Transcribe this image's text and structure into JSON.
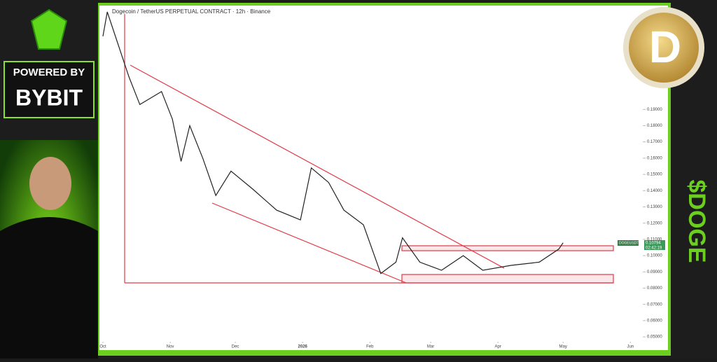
{
  "chart_data": {
    "type": "line",
    "title": "Dogecoin / TetherUS PERPETUAL CONTRACT · 12h · Binance",
    "x": [
      0,
      2,
      12,
      17,
      27,
      32,
      36,
      40,
      46,
      52,
      59,
      69,
      80,
      91,
      96,
      104,
      111,
      120,
      128,
      135,
      138,
      146,
      156,
      166,
      175,
      188,
      201,
      210,
      212
    ],
    "series": [
      {
        "name": "DOGEUSDT.P",
        "color": "#222222",
        "values": [
          0.235,
          0.25,
          0.21,
          0.193,
          0.201,
          0.184,
          0.158,
          0.18,
          0.16,
          0.137,
          0.152,
          0.141,
          0.128,
          0.122,
          0.154,
          0.145,
          0.128,
          0.119,
          0.089,
          0.096,
          0.111,
          0.096,
          0.091,
          0.1,
          0.091,
          0.094,
          0.096,
          0.104,
          0.10794
        ]
      }
    ],
    "xlim": [
      -1,
      250
    ],
    "xticks": [
      {
        "value": 0,
        "label": "Oct"
      },
      {
        "value": 31,
        "label": "Nov"
      },
      {
        "value": 61,
        "label": "Dec"
      },
      {
        "value": 92,
        "label": "2026"
      },
      {
        "value": 123,
        "label": "Feb"
      },
      {
        "value": 151,
        "label": "Mar"
      },
      {
        "value": 182,
        "label": "Apr"
      },
      {
        "value": 212,
        "label": "May"
      },
      {
        "value": 243,
        "label": "Jun"
      }
    ],
    "ylim": [
      0.0453,
      0.2539
    ],
    "yticks": [
      {
        "value": 0.05,
        "label": "0.05000"
      },
      {
        "value": 0.06,
        "label": "0.06000"
      },
      {
        "value": 0.07,
        "label": "0.07000"
      },
      {
        "value": 0.08,
        "label": "0.08000"
      },
      {
        "value": 0.09,
        "label": "0.09000"
      },
      {
        "value": 0.1,
        "label": "0.10000"
      },
      {
        "value": 0.11,
        "label": "0.11000"
      },
      {
        "value": 0.12,
        "label": "0.12000"
      },
      {
        "value": 0.13,
        "label": "0.13000"
      },
      {
        "value": 0.14,
        "label": "0.14000"
      },
      {
        "value": 0.15,
        "label": "0.15000"
      },
      {
        "value": 0.16,
        "label": "0.16000"
      },
      {
        "value": 0.17,
        "label": "0.17000"
      },
      {
        "value": 0.18,
        "label": "0.18000"
      },
      {
        "value": 0.19,
        "label": "0.19000"
      }
    ],
    "last_price_label": "0.10794",
    "countdown": "02:42:19"
  },
  "branding": {
    "powered": "POWERED BY",
    "sponsor": "BYBIT",
    "ticker": "$DOGE"
  }
}
